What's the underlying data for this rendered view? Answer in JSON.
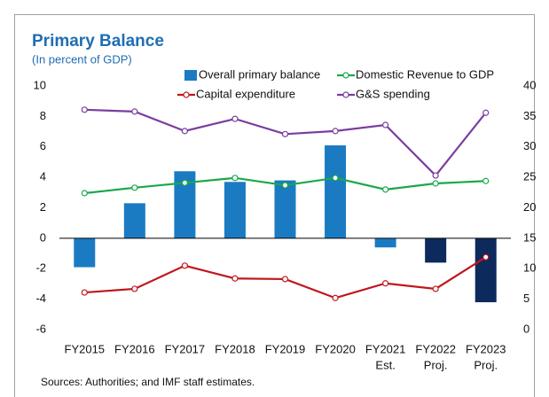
{
  "chart_data": {
    "type": "bar_line",
    "title": "Primary Balance",
    "subtitle": "(In percent of GDP)",
    "source": "Sources: Authorities; and IMF staff estimates.",
    "categories": [
      "FY2015",
      "FY2016",
      "FY2017",
      "FY2018",
      "FY2019",
      "FY2020",
      "FY2021",
      "FY2022",
      "FY2023"
    ],
    "category_notes": [
      null,
      null,
      null,
      null,
      null,
      null,
      "Est.",
      "Proj.",
      "Proj."
    ],
    "ylim": [
      -6,
      10
    ],
    "yticks": [
      -6,
      -4,
      -2,
      0,
      2,
      4,
      6,
      8,
      10
    ],
    "y2lim": [
      0,
      40
    ],
    "y2ticks": [
      0,
      5,
      10,
      15,
      20,
      25,
      30,
      35,
      40
    ],
    "grid": false,
    "series": [
      {
        "name": "Overall primary balance",
        "type": "bar",
        "color": "#1b7bc2",
        "colors": [
          "#1b7bc2",
          "#1b7bc2",
          "#1b7bc2",
          "#1b7bc2",
          "#1b7bc2",
          "#1b7bc2",
          "#1b7bc2",
          "#0d2a5c",
          "#0d2a5c"
        ],
        "values": [
          -1.9,
          2.3,
          4.4,
          3.7,
          3.8,
          6.1,
          -0.6,
          -1.6,
          -4.2
        ]
      },
      {
        "name": "Domestic Revenue to GDP",
        "type": "line",
        "axis": "y2",
        "color": "#1aa84a",
        "values": [
          22.4,
          23.3,
          24.1,
          24.9,
          23.7,
          24.9,
          23.0,
          24.0,
          24.4
        ]
      },
      {
        "name": "Capital expenditure",
        "type": "line",
        "axis": "y2",
        "color": "#c0161c",
        "values": [
          6.1,
          6.7,
          10.5,
          8.4,
          8.3,
          5.2,
          7.6,
          6.7,
          11.9
        ]
      },
      {
        "name": "G&S spending",
        "type": "line",
        "axis": "y2",
        "color": "#7a3d9f",
        "values": [
          36.1,
          35.8,
          32.6,
          34.6,
          32.1,
          32.6,
          33.6,
          25.3,
          35.6
        ]
      }
    ]
  }
}
